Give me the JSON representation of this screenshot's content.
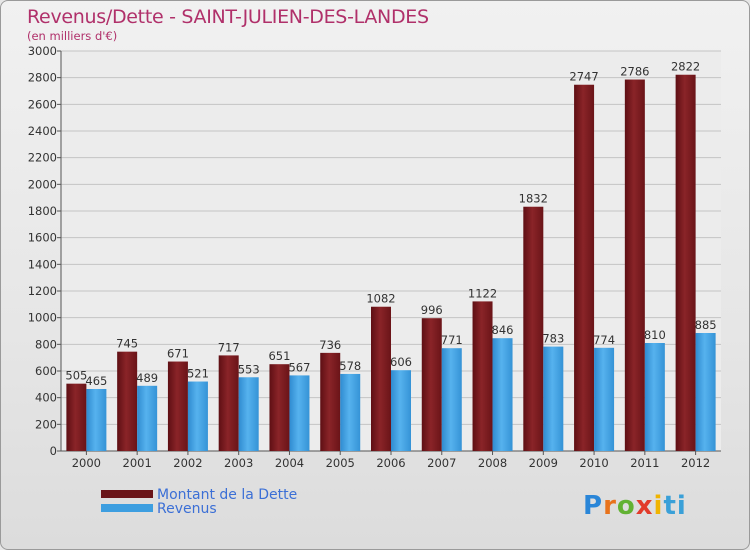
{
  "header": {
    "title": "Revenus/Dette - SAINT-JULIEN-DES-LANDES",
    "subtitle": "(en milliers d'€)"
  },
  "colors": {
    "debt": "#7a1a1e",
    "revenue": "#3d9ee0",
    "title": "#b0306a",
    "legend_text": "#3b6fd6"
  },
  "legend": {
    "debt_label": "Montant de la Dette",
    "revenue_label": "Revenus"
  },
  "logo": {
    "letters": [
      "P",
      "r",
      "o",
      "x",
      "i",
      "t",
      "i"
    ],
    "letter_colors": [
      "#2a86d8",
      "#e8731c",
      "#62b233",
      "#e23b2b",
      "#f0b400",
      "#3aa0d8",
      "#3aa0d8"
    ]
  },
  "chart_data": {
    "type": "bar",
    "title": "Revenus/Dette - SAINT-JULIEN-DES-LANDES",
    "subtitle": "(en milliers d'€)",
    "xlabel": "",
    "ylabel": "",
    "ylim": [
      0,
      3000
    ],
    "yticks": [
      0,
      200,
      400,
      600,
      800,
      1000,
      1200,
      1400,
      1600,
      1800,
      2000,
      2200,
      2400,
      2600,
      2800,
      3000
    ],
    "grid": true,
    "legend_position": "bottom-left",
    "categories": [
      "2000",
      "2001",
      "2002",
      "2003",
      "2004",
      "2005",
      "2006",
      "2007",
      "2008",
      "2009",
      "2010",
      "2011",
      "2012"
    ],
    "series": [
      {
        "name": "Montant de la Dette",
        "values": [
          505,
          745,
          671,
          717,
          651,
          736,
          1082,
          996,
          1122,
          1832,
          2747,
          2786,
          2822
        ]
      },
      {
        "name": "Revenus",
        "values": [
          465,
          489,
          521,
          553,
          567,
          578,
          606,
          771,
          846,
          783,
          774,
          810,
          885
        ]
      }
    ]
  }
}
